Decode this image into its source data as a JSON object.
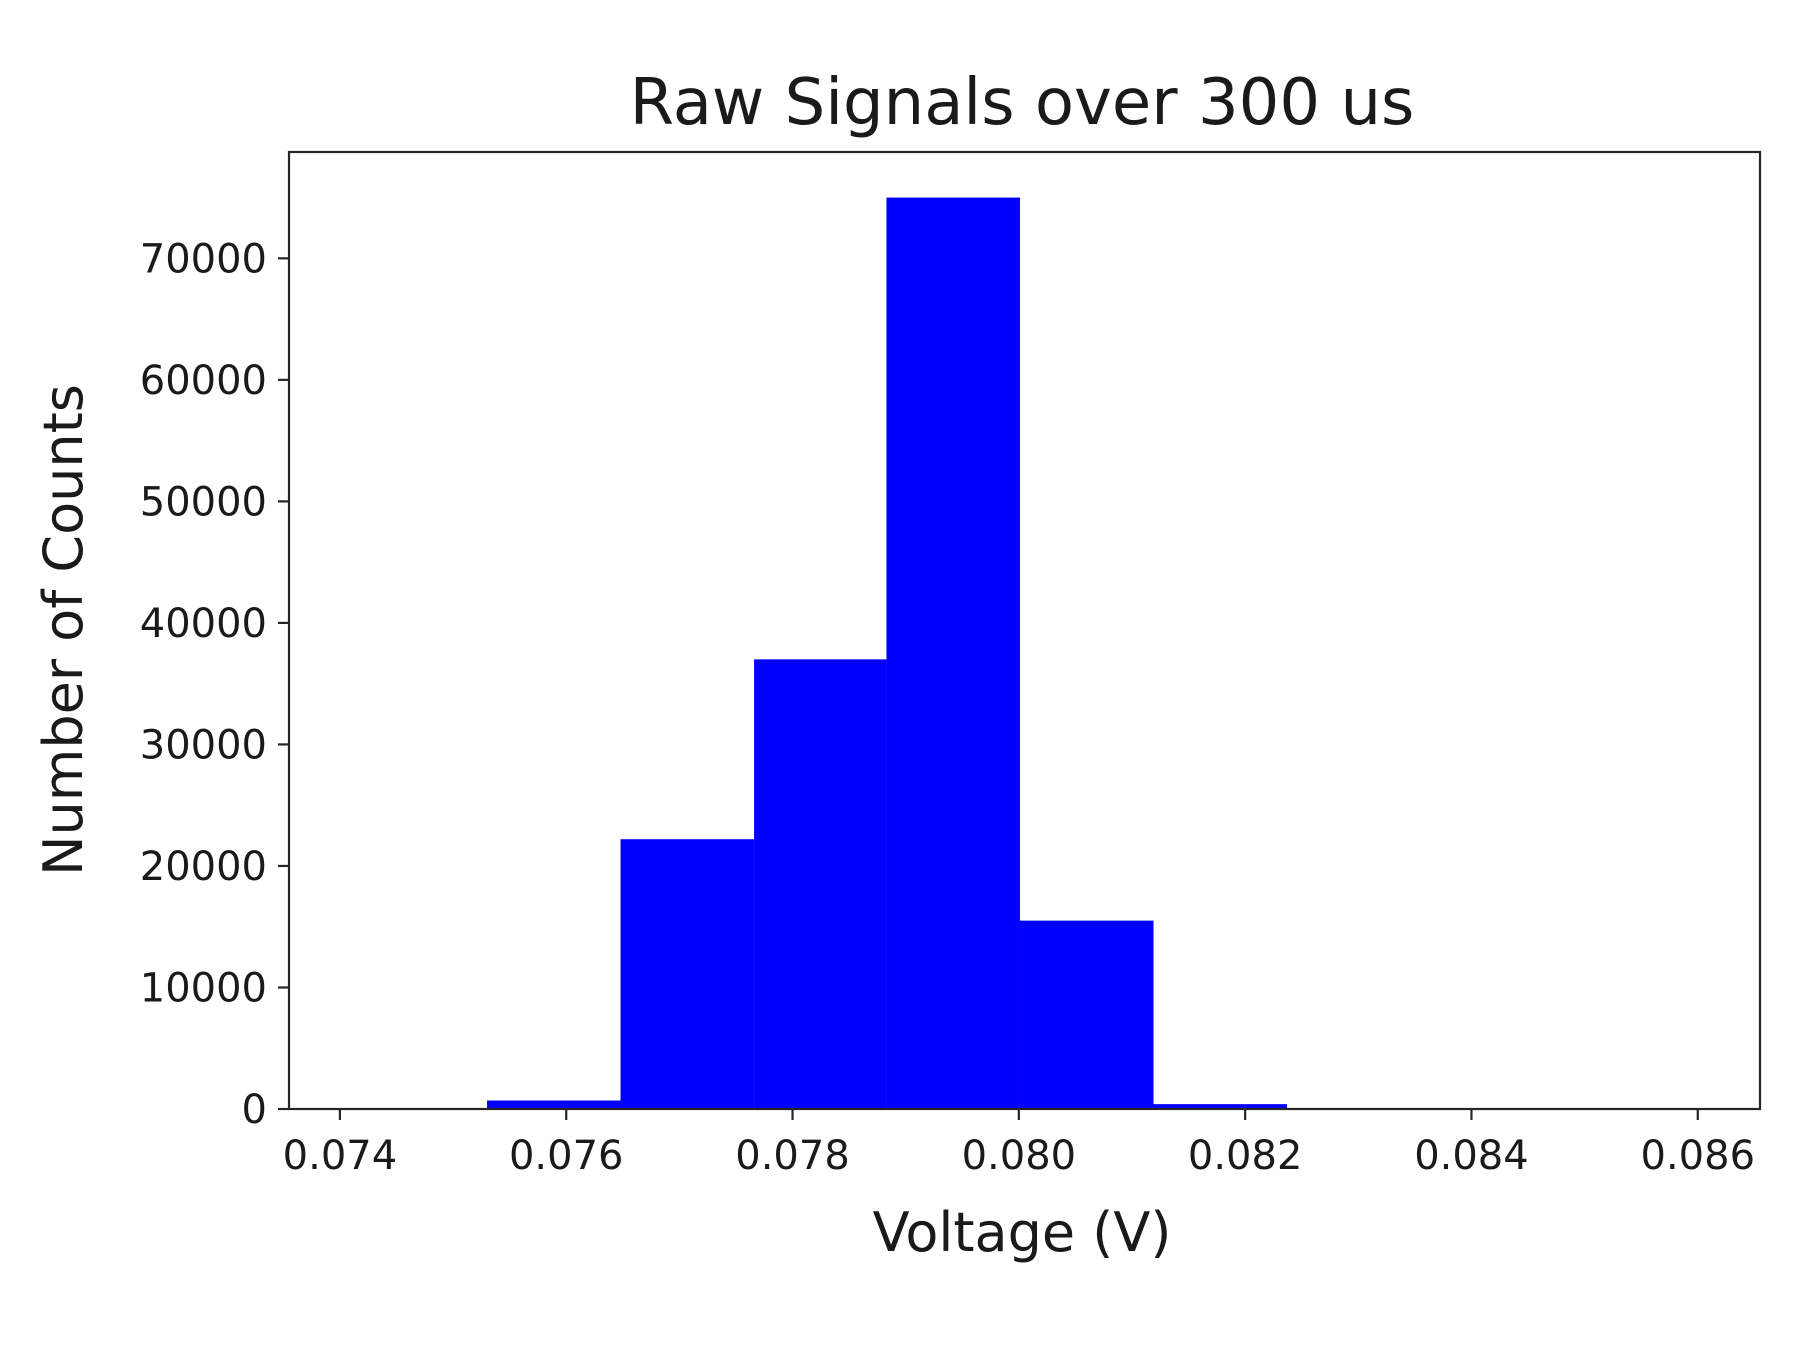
{
  "chart_data": {
    "type": "bar",
    "title": "Raw Signals over 300 us",
    "xlabel": "Voltage (V)",
    "ylabel": "Number of Counts",
    "xlim": [
      0.07355,
      0.08655
    ],
    "ylim": [
      0,
      78750
    ],
    "xticks": [
      "0.074",
      "0.076",
      "0.078",
      "0.080",
      "0.082",
      "0.084",
      "0.086"
    ],
    "yticks": [
      "0",
      "10000",
      "20000",
      "30000",
      "40000",
      "50000",
      "60000",
      "70000"
    ],
    "grid": false,
    "legend": false,
    "bar_color": "#0000ff",
    "bins": [
      {
        "x0": 0.0753,
        "x1": 0.07648,
        "count": 700
      },
      {
        "x0": 0.07648,
        "x1": 0.07766,
        "count": 22200
      },
      {
        "x0": 0.07766,
        "x1": 0.07883,
        "count": 37000
      },
      {
        "x0": 0.07883,
        "x1": 0.08001,
        "count": 75000
      },
      {
        "x0": 0.08001,
        "x1": 0.08119,
        "count": 15500
      },
      {
        "x0": 0.08119,
        "x1": 0.08237,
        "count": 400
      }
    ]
  }
}
